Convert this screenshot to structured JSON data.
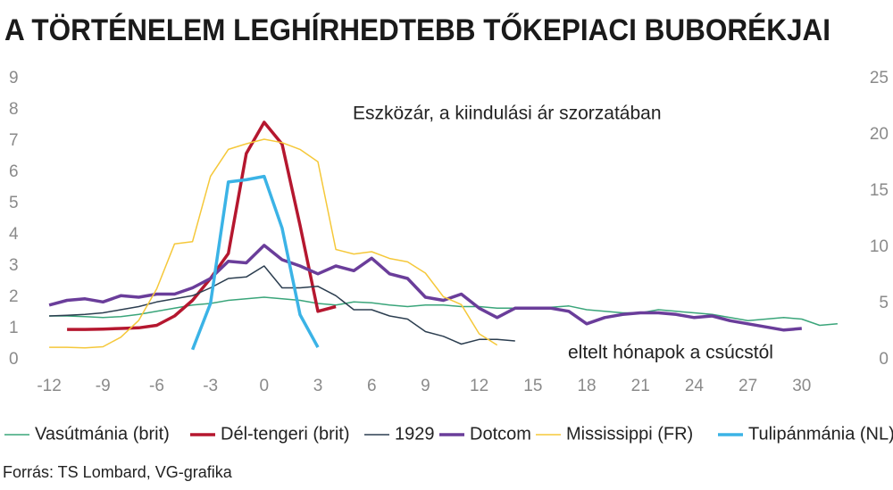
{
  "chart_data": {
    "type": "line",
    "title": "A TÖRTÉNELEM LEGHÍRHEDTEBB TŐKEPIACI BUBORÉKJAI",
    "annotations": [
      "Eszközár, a kiindulási ár szorzatában",
      "eltelt hónapok a csúcstól"
    ],
    "source": "Forrás: TS Lombard, VG-grafika",
    "xlim": [
      -13,
      33
    ],
    "xticks": [
      -12,
      -9,
      -6,
      -3,
      0,
      3,
      6,
      9,
      12,
      15,
      18,
      21,
      24,
      27,
      30
    ],
    "ylim": [
      0,
      9
    ],
    "yticks": [
      0,
      1,
      2,
      3,
      4,
      5,
      6,
      7,
      8,
      9
    ],
    "y2lim": [
      0,
      25
    ],
    "y2ticks": [
      0,
      5,
      10,
      15,
      20,
      25
    ],
    "legend": "bottom",
    "series": [
      {
        "name": "Vasútmánia (brit)",
        "color": "#3aa57a",
        "line_width": 1.5,
        "x": [
          -12,
          -11,
          -10,
          -9,
          -8,
          -7,
          -6,
          -5,
          -4,
          -3,
          -2,
          -1,
          0,
          1,
          2,
          3,
          4,
          5,
          6,
          7,
          8,
          9,
          10,
          11,
          12,
          13,
          14,
          15,
          16,
          17,
          18,
          19,
          20,
          21,
          22,
          23,
          24,
          25,
          26,
          27,
          28,
          29,
          30,
          31,
          32
        ],
        "values": [
          1.4,
          1.4,
          1.38,
          1.35,
          1.38,
          1.45,
          1.55,
          1.65,
          1.75,
          1.8,
          1.9,
          1.95,
          2.0,
          1.95,
          1.9,
          1.8,
          1.75,
          1.85,
          1.82,
          1.75,
          1.7,
          1.75,
          1.75,
          1.7,
          1.7,
          1.65,
          1.65,
          1.68,
          1.68,
          1.72,
          1.6,
          1.55,
          1.5,
          1.5,
          1.6,
          1.55,
          1.5,
          1.45,
          1.35,
          1.25,
          1.3,
          1.35,
          1.3,
          1.1,
          1.15
        ]
      },
      {
        "name": "Dél-tengeri (brit)",
        "color": "#b5172f",
        "line_width": 3.5,
        "x": [
          -11,
          -10,
          -9,
          -8,
          -7,
          -6,
          -5,
          -4,
          -3,
          -2,
          -1,
          0,
          1,
          2,
          3,
          4
        ],
        "values": [
          0.97,
          0.97,
          0.98,
          1.0,
          1.02,
          1.1,
          1.4,
          1.9,
          2.6,
          3.4,
          6.6,
          7.6,
          6.9,
          4.3,
          1.55,
          1.7
        ]
      },
      {
        "name": "1929",
        "color": "#2c3e50",
        "line_width": 1.5,
        "x": [
          -12,
          -11,
          -10,
          -9,
          -8,
          -7,
          -6,
          -5,
          -4,
          -3,
          -2,
          -1,
          0,
          1,
          2,
          3,
          4,
          5,
          6,
          7,
          8,
          9,
          10,
          11,
          12,
          13,
          14
        ],
        "values": [
          1.4,
          1.42,
          1.45,
          1.5,
          1.6,
          1.7,
          1.85,
          1.95,
          2.05,
          2.3,
          2.6,
          2.65,
          3.0,
          2.3,
          2.3,
          2.35,
          2.05,
          1.6,
          1.6,
          1.4,
          1.3,
          0.9,
          0.75,
          0.5,
          0.65,
          0.65,
          0.6
        ]
      },
      {
        "name": "Dotcom",
        "color": "#6a3d9a",
        "line_width": 3.5,
        "x": [
          -12,
          -11,
          -10,
          -9,
          -8,
          -7,
          -6,
          -5,
          -4,
          -3,
          -2,
          -1,
          0,
          1,
          2,
          3,
          4,
          5,
          6,
          7,
          8,
          9,
          10,
          11,
          12,
          13,
          14,
          15,
          16,
          17,
          18,
          19,
          20,
          21,
          22,
          23,
          24,
          25,
          26,
          27,
          28,
          29,
          30
        ],
        "values": [
          1.75,
          1.9,
          1.95,
          1.85,
          2.05,
          2.0,
          2.1,
          2.1,
          2.3,
          2.6,
          3.15,
          3.1,
          3.66,
          3.2,
          3.0,
          2.75,
          3.0,
          2.85,
          3.25,
          2.75,
          2.6,
          2.0,
          1.9,
          2.1,
          1.65,
          1.35,
          1.65,
          1.65,
          1.65,
          1.55,
          1.15,
          1.35,
          1.45,
          1.5,
          1.5,
          1.45,
          1.35,
          1.4,
          1.25,
          1.15,
          1.05,
          0.95,
          1.0
        ]
      },
      {
        "name": "Mississippi (FR)",
        "color": "#f5c83a",
        "line_width": 1.5,
        "axis": "y2",
        "x": [
          -12,
          -11,
          -10,
          -9,
          -8,
          -7,
          -6,
          -5,
          -4,
          -3,
          -2,
          -1,
          0,
          1,
          2,
          3,
          4,
          5,
          6,
          7,
          8,
          9,
          10,
          11,
          12,
          13
        ],
        "values": [
          1.1,
          1.1,
          1.05,
          1.15,
          2.0,
          3.5,
          6.3,
          10.3,
          10.5,
          16.3,
          18.7,
          19.2,
          19.6,
          19.3,
          18.7,
          17.6,
          9.8,
          9.4,
          9.6,
          9.0,
          8.7,
          7.7,
          5.6,
          4.9,
          2.3,
          1.3
        ]
      },
      {
        "name": "Tulipánmánia (NL)",
        "color": "#3bb3e6",
        "line_width": 3.5,
        "axis": "y2",
        "x": [
          -4,
          -3,
          -2,
          -1,
          0,
          1,
          2,
          3
        ],
        "values": [
          0.9,
          5.0,
          15.8,
          16.0,
          16.3,
          11.7,
          4.0,
          1.1
        ]
      }
    ]
  }
}
